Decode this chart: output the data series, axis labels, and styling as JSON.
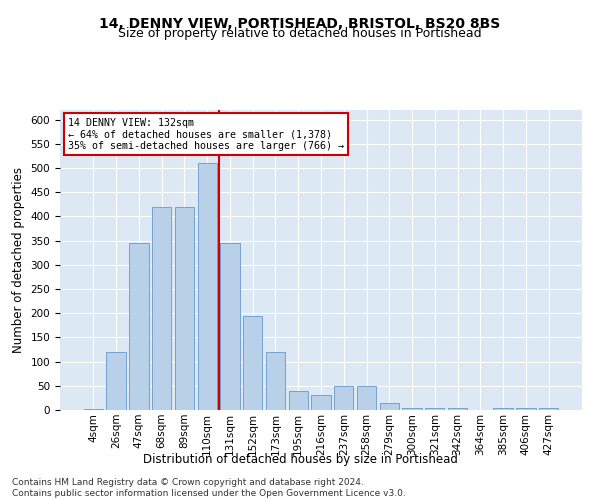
{
  "title": "14, DENNY VIEW, PORTISHEAD, BRISTOL, BS20 8BS",
  "subtitle": "Size of property relative to detached houses in Portishead",
  "xlabel": "Distribution of detached houses by size in Portishead",
  "ylabel": "Number of detached properties",
  "footer_line1": "Contains HM Land Registry data © Crown copyright and database right 2024.",
  "footer_line2": "Contains public sector information licensed under the Open Government Licence v3.0.",
  "bar_labels": [
    "4sqm",
    "26sqm",
    "47sqm",
    "68sqm",
    "89sqm",
    "110sqm",
    "131sqm",
    "152sqm",
    "173sqm",
    "195sqm",
    "216sqm",
    "237sqm",
    "258sqm",
    "279sqm",
    "300sqm",
    "321sqm",
    "342sqm",
    "364sqm",
    "385sqm",
    "406sqm",
    "427sqm"
  ],
  "bar_values": [
    2,
    120,
    345,
    420,
    420,
    510,
    345,
    195,
    120,
    40,
    30,
    50,
    50,
    15,
    5,
    5,
    5,
    0,
    5,
    5,
    5
  ],
  "bar_color": "#b8d0e8",
  "bar_edgecolor": "#6699cc",
  "vline_color": "#cc0000",
  "annotation_box_edgecolor": "#cc0000",
  "annotation_box_facecolor": "#ffffff",
  "property_label": "14 DENNY VIEW: 132sqm",
  "annotation_line1": "← 64% of detached houses are smaller (1,378)",
  "annotation_line2": "35% of semi-detached houses are larger (766) →",
  "vline_bin_idx": 6,
  "ylim": [
    0,
    620
  ],
  "yticks": [
    0,
    50,
    100,
    150,
    200,
    250,
    300,
    350,
    400,
    450,
    500,
    550,
    600
  ],
  "axes_facecolor": "#dce9f5",
  "title_fontsize": 10,
  "subtitle_fontsize": 9,
  "xlabel_fontsize": 8.5,
  "ylabel_fontsize": 8.5,
  "tick_fontsize": 7.5,
  "footer_fontsize": 6.5
}
